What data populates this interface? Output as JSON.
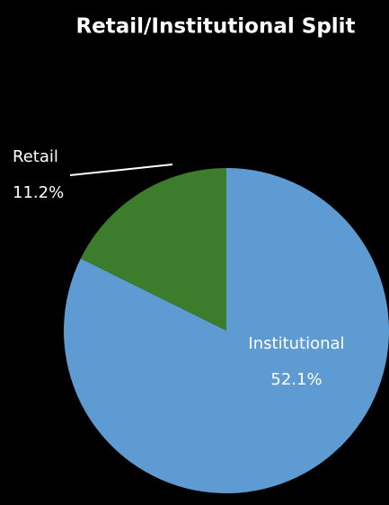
{
  "chart_data": {
    "type": "pie",
    "title": "Retail/Institutional Split",
    "categories": [
      "Retail",
      "Institutional"
    ],
    "values": [
      11.2,
      52.1
    ],
    "value_labels": [
      "11.2%",
      "52.1%"
    ],
    "colors": [
      "#3b7d2d",
      "#5f9bd3"
    ]
  }
}
